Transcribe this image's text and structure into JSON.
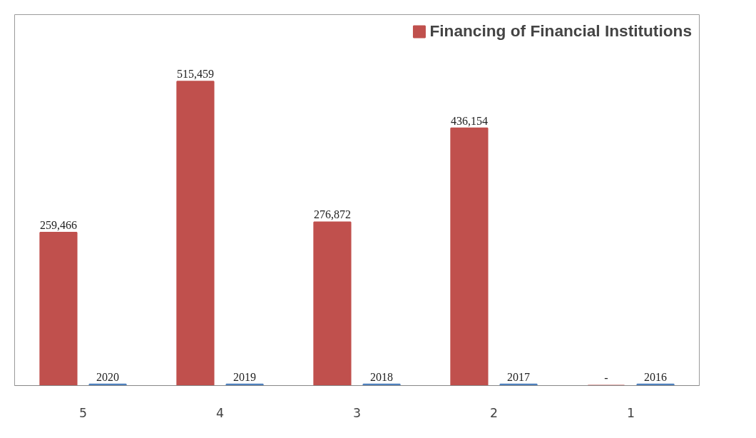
{
  "chart_data": {
    "type": "bar",
    "categories": [
      "5",
      "4",
      "3",
      "2",
      "1"
    ],
    "series": [
      {
        "name": "Financing of Financial Institutions",
        "color": "#c0504d",
        "values": [
          259466,
          515459,
          276872,
          436154,
          0
        ],
        "value_labels": [
          "259,466",
          "515,459",
          "276,872",
          "436,154",
          "-"
        ]
      },
      {
        "color": "#4f81bd",
        "values": [
          2020,
          2019,
          2018,
          2017,
          2016
        ],
        "value_labels": [
          "2020",
          "2019",
          "2018",
          "2017",
          "2016"
        ]
      }
    ],
    "legend": "top right",
    "grid": false
  }
}
